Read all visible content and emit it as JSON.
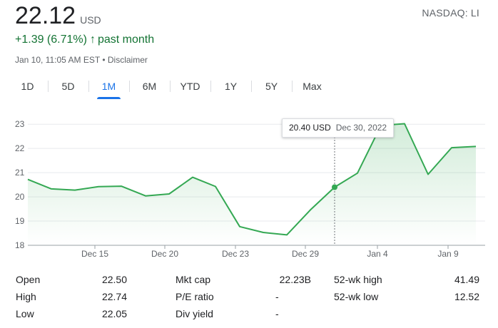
{
  "quote": {
    "price": "22.12",
    "currency": "USD",
    "exchange": "NASDAQ: LI",
    "change": "+1.39 (6.71%)",
    "change_arrow": "↑",
    "period": "past month",
    "timestamp": "Jan 10, 11:05 AM EST",
    "separator": "•",
    "disclaimer": "Disclaimer"
  },
  "tabs": [
    {
      "label": "1D"
    },
    {
      "label": "5D"
    },
    {
      "label": "1M",
      "active": true
    },
    {
      "label": "6M"
    },
    {
      "label": "YTD"
    },
    {
      "label": "1Y"
    },
    {
      "label": "5Y"
    },
    {
      "label": "Max"
    }
  ],
  "tooltip": {
    "price": "20.40 USD",
    "date": "Dec 30, 2022"
  },
  "colors": {
    "line": "#34a853",
    "positive": "#137333",
    "accent": "#1a73e8"
  },
  "chart_data": {
    "type": "area",
    "ylim": [
      18,
      23.3
    ],
    "y_ticks": [
      "23",
      "22",
      "21",
      "20",
      "19",
      "18"
    ],
    "x_ticks": [
      {
        "label": "Dec 15",
        "x": 4
      },
      {
        "label": "Dec 20",
        "x": 9
      },
      {
        "label": "Dec 23",
        "x": 12
      },
      {
        "label": "Dec 29",
        "x": 16
      },
      {
        "label": "Jan 4",
        "x": 20
      },
      {
        "label": "Jan 9",
        "x": 24
      }
    ],
    "series": [
      {
        "x": [
          0,
          1,
          2,
          3,
          4,
          5,
          6,
          7,
          8,
          9,
          10,
          11,
          12,
          13,
          14,
          15,
          16,
          17,
          18,
          19,
          20,
          21,
          22
        ],
        "values": [
          20.72,
          20.33,
          20.28,
          20.42,
          20.44,
          20.04,
          20.12,
          20.81,
          20.43,
          18.77,
          18.53,
          18.43,
          19.46,
          20.4,
          20.98,
          22.95,
          23.02,
          20.93,
          22.03,
          22.08,
          null,
          null,
          null
        ],
        "dates": [
          0,
          2,
          3,
          4,
          5,
          6,
          8,
          9,
          10,
          11,
          12,
          14,
          15,
          16,
          17,
          18,
          19,
          20,
          21,
          22
        ]
      }
    ],
    "highlight": {
      "value": 20.4,
      "date": "Dec 30, 2022"
    }
  },
  "stats": [
    {
      "label": "Open",
      "value": "22.50"
    },
    {
      "label": "High",
      "value": "22.74"
    },
    {
      "label": "Low",
      "value": "22.05"
    },
    {
      "label": "Mkt cap",
      "value": "22.23B"
    },
    {
      "label": "P/E ratio",
      "value": "-"
    },
    {
      "label": "Div yield",
      "value": "-"
    },
    {
      "label": "52-wk high",
      "value": "41.49"
    },
    {
      "label": "52-wk low",
      "value": "12.52"
    }
  ]
}
